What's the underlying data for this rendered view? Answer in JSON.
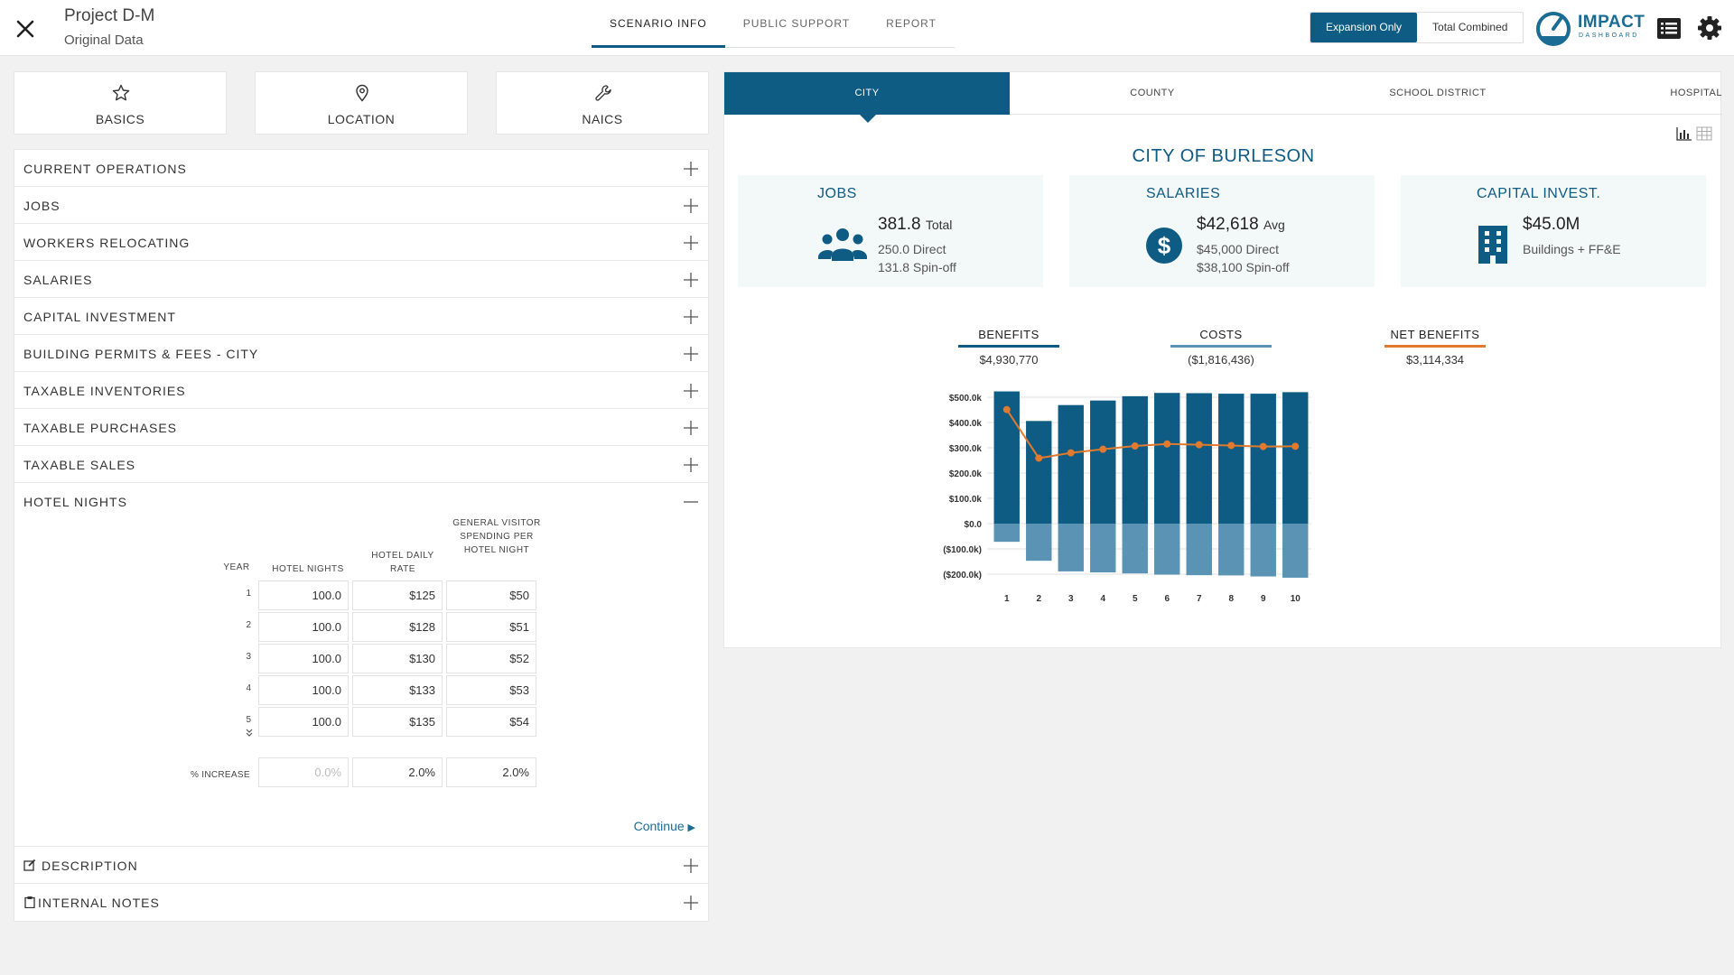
{
  "header": {
    "project_title": "Project D-M",
    "project_subtitle": "Original Data",
    "tabs": [
      {
        "label": "SCENARIO INFO",
        "active": true
      },
      {
        "label": "PUBLIC SUPPORT",
        "active": false
      },
      {
        "label": "REPORT",
        "active": false
      }
    ],
    "toggle": {
      "expansion_only": "Expansion Only",
      "total_combined": "Total Combined",
      "selected": "Expansion Only"
    },
    "brand": {
      "name": "IMPACT",
      "sub": "DASHBOARD"
    }
  },
  "left": {
    "cards": [
      {
        "label": "BASICS",
        "icon": "star-icon"
      },
      {
        "label": "LOCATION",
        "icon": "location-pin-icon"
      },
      {
        "label": "NAICS",
        "icon": "wrench-icon"
      }
    ],
    "sections": [
      "CURRENT OPERATIONS",
      "JOBS",
      "WORKERS RELOCATING",
      "SALARIES",
      "CAPITAL INVESTMENT",
      "BUILDING PERMITS & FEES - CITY",
      "TAXABLE INVENTORIES",
      "TAXABLE PURCHASES",
      "TAXABLE SALES"
    ],
    "hotel": {
      "title": "HOTEL NIGHTS",
      "headers": {
        "year": "YEAR",
        "nights": "HOTEL NIGHTS",
        "rate": "HOTEL DAILY RATE",
        "spending": "GENERAL VISITOR SPENDING PER HOTEL NIGHT"
      },
      "rows": [
        {
          "year": "1",
          "nights": "100.0",
          "rate": "$125",
          "spending": "$50"
        },
        {
          "year": "2",
          "nights": "100.0",
          "rate": "$128",
          "spending": "$51"
        },
        {
          "year": "3",
          "nights": "100.0",
          "rate": "$130",
          "spending": "$52"
        },
        {
          "year": "4",
          "nights": "100.0",
          "rate": "$133",
          "spending": "$53"
        },
        {
          "year": "5",
          "nights": "100.0",
          "rate": "$135",
          "spending": "$54"
        }
      ],
      "increase_label": "% INCREASE",
      "increase": {
        "nights": "0.0%",
        "rate": "2.0%",
        "spending": "2.0%"
      },
      "continue": "Continue"
    },
    "bottom_sections": [
      "DESCRIPTION",
      "INTERNAL NOTES"
    ]
  },
  "right": {
    "jurisdiction_tabs": [
      {
        "label": "CITY",
        "active": true
      },
      {
        "label": "COUNTY",
        "active": false
      },
      {
        "label": "SCHOOL DISTRICT",
        "active": false
      },
      {
        "label": "HOSPITAL",
        "active": false
      }
    ],
    "title": "CITY OF BURLESON",
    "stats": {
      "jobs": {
        "title": "JOBS",
        "value": "381.8",
        "unit": "Total",
        "line1": "250.0 Direct",
        "line2": "131.8 Spin-off"
      },
      "salaries": {
        "title": "SALARIES",
        "value": "$42,618",
        "unit": "Avg",
        "line1": "$45,000 Direct",
        "line2": "$38,100 Spin-off"
      },
      "capital": {
        "title": "CAPITAL INVEST.",
        "value": "$45.0M",
        "line1": "Buildings + FF&E"
      }
    },
    "legend": [
      {
        "label": "BENEFITS",
        "value": "$4,930,770",
        "color": "#0e5b84"
      },
      {
        "label": "COSTS",
        "value": "($1,816,436)",
        "color": "#5a93b3"
      },
      {
        "label": "NET BENEFITS",
        "value": "$3,114,334",
        "color": "#e07a2e"
      }
    ]
  },
  "chart_data": {
    "type": "bar",
    "categories": [
      "1",
      "2",
      "3",
      "4",
      "5",
      "6",
      "7",
      "8",
      "9",
      "10"
    ],
    "series": [
      {
        "name": "BENEFITS",
        "type": "bar",
        "color": "#0e5b84",
        "values": [
          523000,
          406000,
          469000,
          487000,
          504000,
          517000,
          516000,
          514000,
          514000,
          520000
        ]
      },
      {
        "name": "COSTS",
        "type": "bar",
        "color": "#5a93b3",
        "values": [
          -72000,
          -147000,
          -189000,
          -193000,
          -197000,
          -202000,
          -204000,
          -205000,
          -209000,
          -214000
        ]
      },
      {
        "name": "NET BENEFITS",
        "type": "line",
        "color": "#e07a2e",
        "values": [
          451000,
          259000,
          280000,
          294000,
          307000,
          315000,
          312000,
          309000,
          305000,
          306000
        ]
      }
    ],
    "ylim": [
      -200000,
      500000
    ],
    "yticks": [
      "$500.0k",
      "$400.0k",
      "$300.0k",
      "$200.0k",
      "$100.0k",
      "$0.0",
      "($100.0k)",
      "($200.0k)"
    ],
    "grid": true
  }
}
